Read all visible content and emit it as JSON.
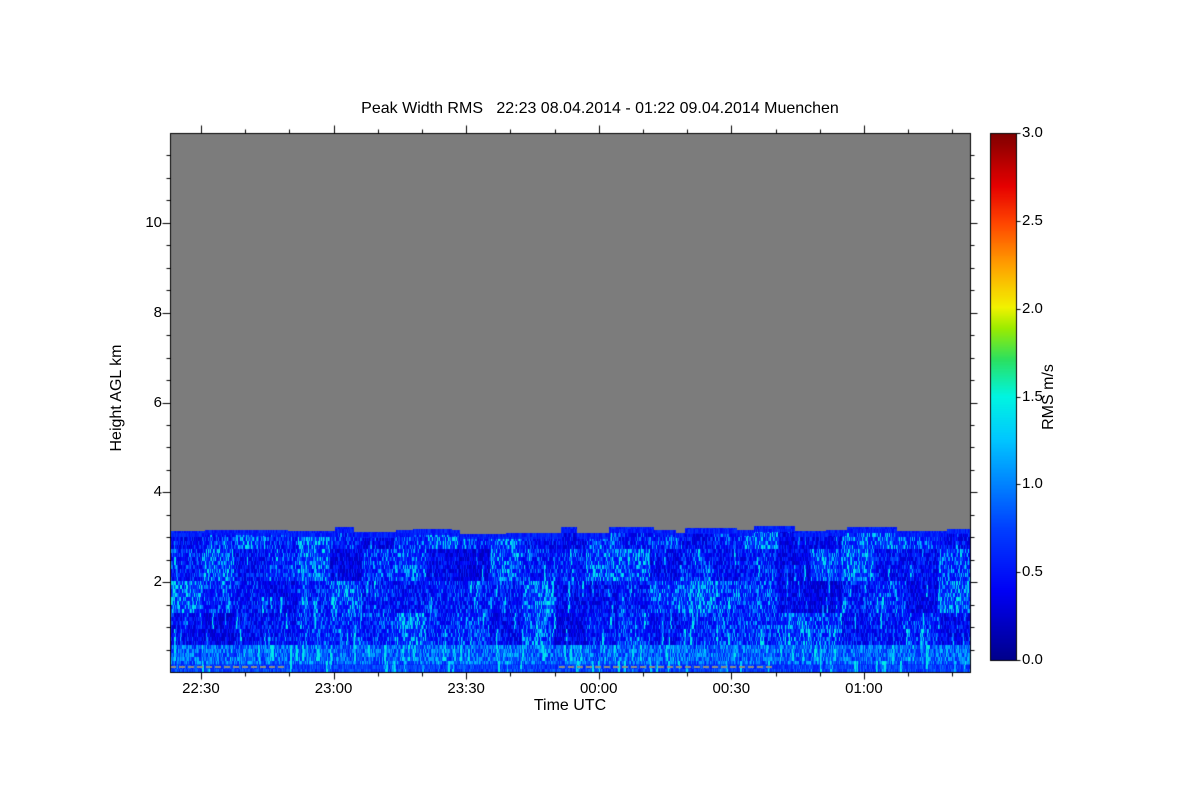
{
  "chart_data": {
    "type": "heatmap",
    "title": "Peak Width RMS   22:23 08.04.2014 - 01:22 09.04.2014 Muenchen",
    "xlabel": "Time UTC",
    "ylabel": "Height AGL km",
    "x_axis": {
      "start_label": "22:23",
      "end_label": "01:22",
      "total_minutes": 181,
      "minor_step_min": 10,
      "ticks": [
        {
          "label": "22:30",
          "min": 7
        },
        {
          "label": "23:00",
          "min": 37
        },
        {
          "label": "23:30",
          "min": 67
        },
        {
          "label": "00:00",
          "min": 97
        },
        {
          "label": "00:30",
          "min": 127
        },
        {
          "label": "01:00",
          "min": 157
        }
      ]
    },
    "y_axis": {
      "lim": [
        0,
        12
      ],
      "ticks": [
        2,
        4,
        6,
        8,
        10
      ],
      "minor_step": 0.5
    },
    "colorbar": {
      "label": "RMS m/s",
      "min": 0,
      "max": 3,
      "ticks": [
        "0.0",
        "0.5",
        "1.0",
        "1.5",
        "2.0",
        "2.5",
        "3.0"
      ],
      "stops": [
        [
          0.0,
          "#00008C"
        ],
        [
          0.13,
          "#0000F5"
        ],
        [
          0.25,
          "#0040FF"
        ],
        [
          0.33,
          "#0080FF"
        ],
        [
          0.42,
          "#00C8FF"
        ],
        [
          0.5,
          "#00F5E1"
        ],
        [
          0.57,
          "#2BE060"
        ],
        [
          0.63,
          "#9CEC00"
        ],
        [
          0.67,
          "#F2F200"
        ],
        [
          0.75,
          "#FFA000"
        ],
        [
          0.83,
          "#FF4500"
        ],
        [
          0.9,
          "#E60000"
        ],
        [
          1.0,
          "#800000"
        ]
      ]
    },
    "no_data_color": "#7C7C7C",
    "field": {
      "description": "Peak width RMS below the echo top (~3.1-3.3 km AGL): mostly 0.1-1.1 m/s (dark blue to cyan), fibrous cyan streaks, darker navy patches between 1-2.5 km, brighter cyan band near 0.2-0.6 km, solid blue cap at echo top, gray = no data above",
      "echo_top_km": [
        3.06,
        3.32
      ],
      "cap_value": 0.5,
      "band_km": [
        0.2,
        0.62
      ],
      "bulk_value_range": [
        0.1,
        1.1
      ],
      "seed": 42
    },
    "ground_segments": {
      "color": "#8F8F83",
      "height_km": 0.12,
      "minutes": [
        [
          0,
          26
        ],
        [
          88,
          136
        ]
      ]
    }
  }
}
